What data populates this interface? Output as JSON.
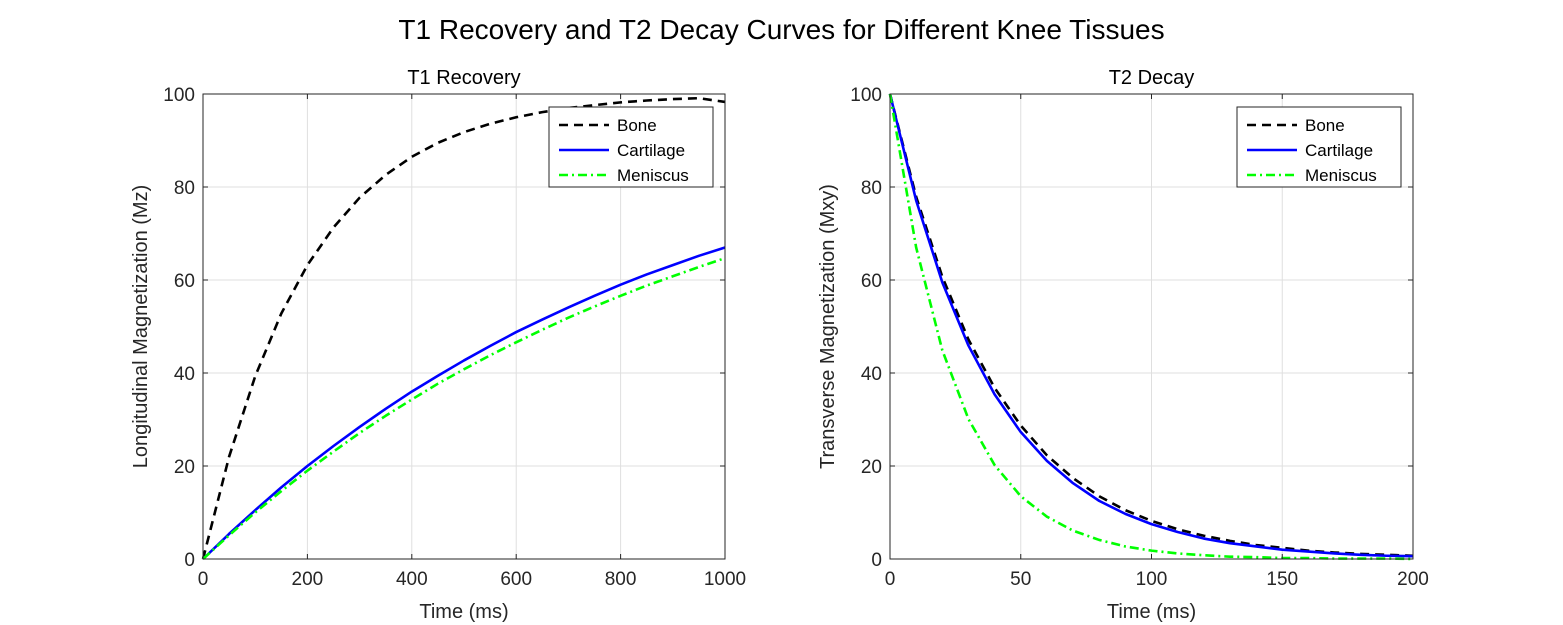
{
  "figure": {
    "title": "T1 Recovery and T2 Decay Curves for Different Knee Tissues"
  },
  "chart_data": [
    {
      "type": "line",
      "title": "T1 Recovery",
      "xlabel": "Time (ms)",
      "ylabel": "Longitudinal Magnetization (Mz)",
      "xlim": [
        0,
        1000
      ],
      "ylim": [
        0,
        100
      ],
      "xticks": [
        0,
        200,
        400,
        600,
        800,
        1000
      ],
      "yticks": [
        0,
        20,
        40,
        60,
        80,
        100
      ],
      "grid": true,
      "legend": "top-right",
      "x": [
        0,
        50,
        100,
        150,
        200,
        250,
        300,
        350,
        400,
        450,
        500,
        550,
        600,
        650,
        700,
        750,
        800,
        850,
        900,
        950,
        1000
      ],
      "series": [
        {
          "name": "Bone",
          "color": "#000000",
          "style": "dashed",
          "values": [
            0,
            22.0,
            39.3,
            52.8,
            63.2,
            71.3,
            77.7,
            82.6,
            86.5,
            89.5,
            91.8,
            93.6,
            95.0,
            96.1,
            97.0,
            97.6,
            98.2,
            98.6,
            98.9,
            99.1,
            98.3
          ]
        },
        {
          "name": "Cartilage",
          "color": "#0000ff",
          "style": "solid",
          "values": [
            0,
            5.4,
            10.5,
            15.4,
            20.0,
            24.3,
            28.4,
            32.3,
            36.0,
            39.4,
            42.7,
            45.8,
            48.8,
            51.5,
            54.1,
            56.6,
            59.0,
            61.2,
            63.2,
            65.2,
            67.0
          ]
        },
        {
          "name": "Meniscus",
          "color": "#00ff00",
          "style": "dashdot",
          "values": [
            0,
            5.1,
            10.0,
            14.6,
            19.0,
            23.1,
            27.1,
            30.8,
            34.3,
            37.7,
            40.8,
            43.8,
            46.6,
            49.3,
            51.9,
            54.3,
            56.6,
            58.8,
            60.8,
            62.8,
            64.7
          ]
        }
      ]
    },
    {
      "type": "line",
      "title": "T2 Decay",
      "xlabel": "Time (ms)",
      "ylabel": "Transverse Magnetization (Mxy)",
      "xlim": [
        0,
        200
      ],
      "ylim": [
        0,
        100
      ],
      "xticks": [
        0,
        50,
        100,
        150,
        200
      ],
      "yticks": [
        0,
        20,
        40,
        60,
        80,
        100
      ],
      "grid": true,
      "legend": "top-right",
      "x": [
        0,
        10,
        20,
        30,
        40,
        50,
        60,
        70,
        80,
        90,
        100,
        110,
        120,
        130,
        140,
        150,
        160,
        170,
        180,
        190,
        200
      ],
      "series": [
        {
          "name": "Bone",
          "color": "#000000",
          "style": "dashed",
          "values": [
            100,
            77.9,
            60.7,
            47.2,
            36.8,
            28.7,
            22.3,
            17.4,
            13.5,
            10.5,
            8.2,
            6.4,
            5.0,
            3.9,
            3.0,
            2.4,
            1.8,
            1.4,
            1.1,
            0.9,
            0.7
          ]
        },
        {
          "name": "Cartilage",
          "color": "#0000ff",
          "style": "solid",
          "values": [
            100,
            77.1,
            59.5,
            45.9,
            35.4,
            27.3,
            21.1,
            16.3,
            12.5,
            9.7,
            7.5,
            5.8,
            4.4,
            3.4,
            2.7,
            2.0,
            1.6,
            1.2,
            0.9,
            0.7,
            0.6
          ]
        },
        {
          "name": "Meniscus",
          "color": "#00ff00",
          "style": "dashdot",
          "values": [
            100,
            67.0,
            44.9,
            30.1,
            20.2,
            13.5,
            9.1,
            6.1,
            4.1,
            2.7,
            1.8,
            1.2,
            0.8,
            0.5,
            0.4,
            0.2,
            0.2,
            0.1,
            0.1,
            0.1,
            0.0
          ]
        }
      ]
    }
  ]
}
